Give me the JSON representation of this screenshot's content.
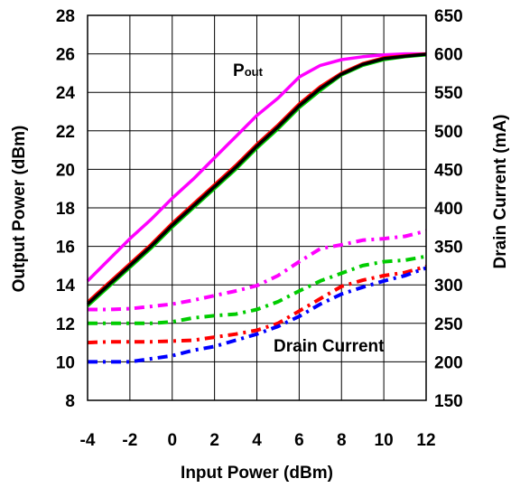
{
  "chart_data": {
    "type": "line",
    "x_axis": {
      "label": "Input Power (dBm)",
      "range": [
        -4,
        12
      ],
      "ticks": [
        "-4",
        "-2",
        "0",
        "2",
        "4",
        "6",
        "8",
        "10",
        "12"
      ]
    },
    "y_left": {
      "label": "Output Power (dBm)",
      "range": [
        8,
        28
      ],
      "ticks": [
        "8",
        "10",
        "12",
        "14",
        "16",
        "18",
        "20",
        "22",
        "24",
        "26",
        "28"
      ]
    },
    "y_right": {
      "label": "Drain Current (mA)",
      "range": [
        150,
        650
      ],
      "ticks": [
        "150",
        "200",
        "250",
        "300",
        "350",
        "400",
        "450",
        "500",
        "550",
        "600",
        "650"
      ]
    },
    "grid": true,
    "annotations": {
      "pout_main": "P",
      "pout_sub": "out",
      "drain_current": "Drain Current"
    },
    "x": [
      -4,
      -3,
      -2,
      -1,
      0,
      1,
      2,
      3,
      4,
      5,
      6,
      7,
      8,
      9,
      10,
      11,
      12
    ],
    "series": [
      {
        "axis": "left",
        "style": "solid",
        "color": "#ff00ff",
        "y": [
          14.2,
          15.3,
          16.4,
          17.4,
          18.5,
          19.5,
          20.6,
          21.7,
          22.8,
          23.7,
          24.8,
          25.4,
          25.7,
          25.85,
          25.95,
          26.0,
          26.0
        ]
      },
      {
        "axis": "left",
        "style": "solid",
        "color": "#ff0000",
        "y": [
          13.1,
          14.1,
          15.1,
          16.1,
          17.2,
          18.2,
          19.2,
          20.2,
          21.3,
          22.3,
          23.4,
          24.3,
          25.0,
          25.5,
          25.8,
          25.9,
          26.0
        ]
      },
      {
        "axis": "left",
        "style": "solid",
        "color": "#00cc00",
        "y": [
          12.9,
          13.9,
          14.9,
          15.9,
          17.0,
          18.0,
          19.0,
          20.0,
          21.1,
          22.1,
          23.2,
          24.1,
          24.9,
          25.4,
          25.7,
          25.85,
          25.95
        ]
      },
      {
        "axis": "left",
        "style": "solid",
        "color": "#000000",
        "y": [
          13.0,
          14.0,
          15.0,
          16.0,
          17.1,
          18.1,
          19.1,
          20.1,
          21.2,
          22.2,
          23.3,
          24.2,
          24.95,
          25.45,
          25.75,
          25.88,
          25.98
        ]
      },
      {
        "axis": "right",
        "style": "dashdot",
        "color": "#ff00ff",
        "y": [
          268,
          268,
          269,
          272,
          275,
          280,
          286,
          292,
          299,
          312,
          330,
          347,
          352,
          358,
          360,
          363,
          370
        ]
      },
      {
        "axis": "right",
        "style": "dashdot",
        "color": "#00cc00",
        "y": [
          250,
          250,
          250,
          250,
          252,
          257,
          260,
          262,
          268,
          278,
          292,
          305,
          315,
          325,
          330,
          332,
          337
        ]
      },
      {
        "axis": "right",
        "style": "dashdot",
        "color": "#ff0000",
        "y": [
          225,
          226,
          226,
          226,
          227,
          228,
          232,
          236,
          241,
          250,
          266,
          282,
          298,
          306,
          312,
          316,
          324
        ]
      },
      {
        "axis": "right",
        "style": "dashdot",
        "color": "#0000ff",
        "y": [
          200,
          200,
          200,
          204,
          208,
          215,
          220,
          228,
          236,
          246,
          259,
          275,
          288,
          297,
          305,
          312,
          322
        ]
      }
    ]
  }
}
